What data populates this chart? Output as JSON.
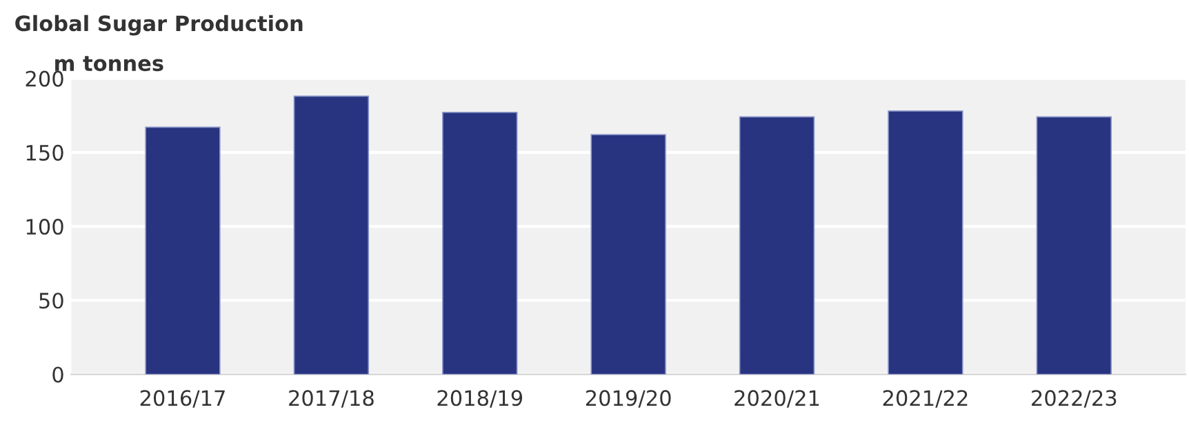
{
  "chart_data": {
    "type": "bar",
    "title": "Global Sugar Production",
    "ylabel": "m tonnes",
    "categories": [
      "2016/17",
      "2017/18",
      "2018/19",
      "2019/20",
      "2020/21",
      "2021/22",
      "2022/23"
    ],
    "values": [
      167,
      188,
      177,
      162,
      174,
      178,
      174
    ],
    "color": "#283480",
    "ylim": [
      0,
      200
    ],
    "yticks": [
      0,
      50,
      100,
      150,
      200
    ],
    "grid": "y"
  }
}
